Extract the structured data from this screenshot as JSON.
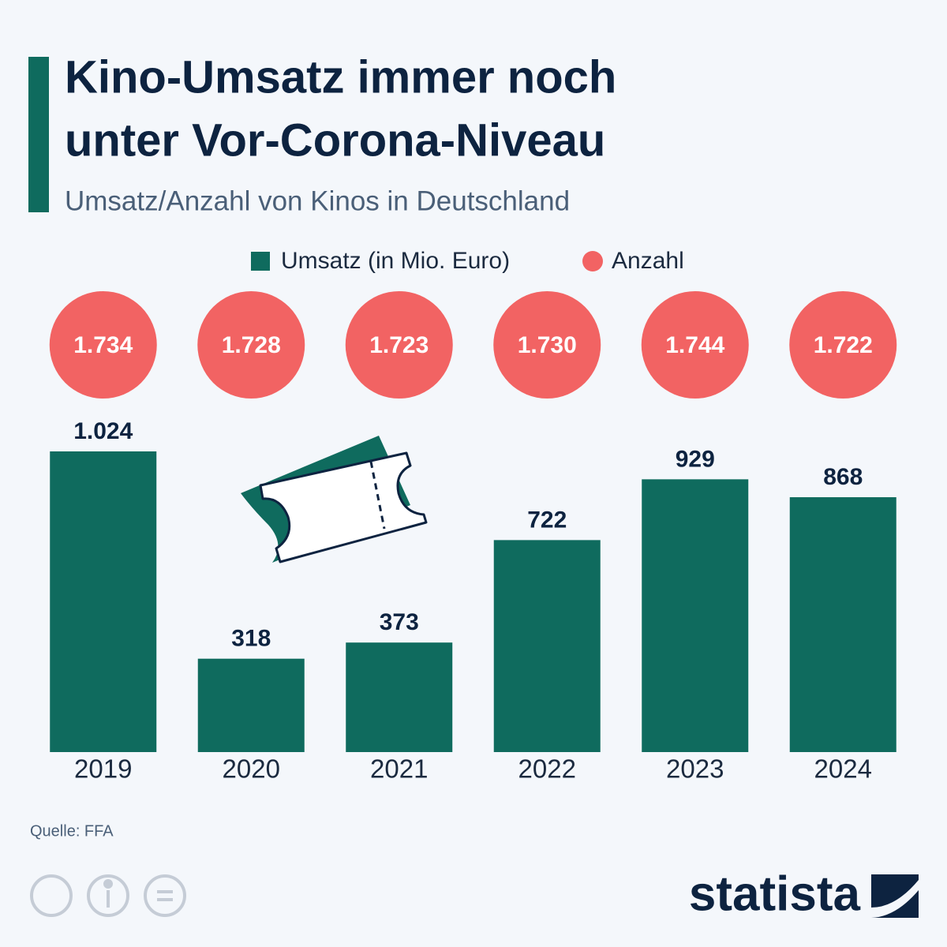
{
  "chart_data": {
    "type": "bar",
    "title": [
      "Kino-Umsatz immer noch",
      "unter Vor-Corona-Niveau"
    ],
    "subtitle": "Umsatz/Anzahl von Kinos in Deutschland",
    "categories": [
      "2019",
      "2020",
      "2021",
      "2022",
      "2023",
      "2024"
    ],
    "series": [
      {
        "name": "Umsatz (in Mio. Euro)",
        "color": "#0f6b5e",
        "values": [
          1024,
          318,
          373,
          722,
          929,
          868
        ],
        "value_labels": [
          "1.024",
          "318",
          "373",
          "722",
          "929",
          "868"
        ]
      },
      {
        "name": "Anzahl",
        "color": "#f26363",
        "values": [
          1734,
          1728,
          1723,
          1730,
          1744,
          1722
        ],
        "value_labels": [
          "1.734",
          "1.728",
          "1.723",
          "1.730",
          "1.744",
          "1.722"
        ]
      }
    ],
    "source": "Quelle: FFA",
    "brand": "statista"
  }
}
